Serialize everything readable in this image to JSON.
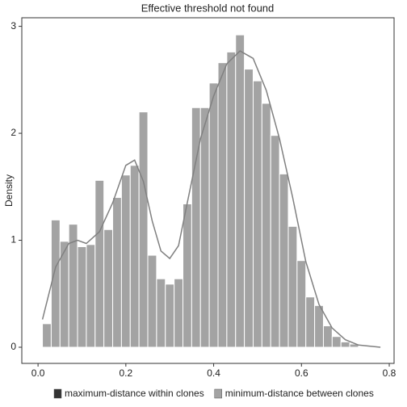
{
  "chart_data": {
    "type": "histogram",
    "title": "Effective threshold not found",
    "ylabel": "Density",
    "bins": [
      0.01,
      0.03,
      0.05,
      0.07,
      0.09,
      0.11,
      0.13,
      0.15,
      0.17,
      0.19,
      0.21,
      0.23,
      0.25,
      0.27,
      0.29,
      0.31,
      0.33,
      0.35,
      0.37,
      0.39,
      0.41,
      0.43,
      0.45,
      0.47,
      0.49,
      0.51,
      0.53,
      0.55,
      0.57,
      0.59,
      0.61,
      0.63,
      0.65,
      0.67,
      0.69,
      0.71,
      0.73
    ],
    "values": [
      0.22,
      1.19,
      0.99,
      1.15,
      0.94,
      0.96,
      1.56,
      1.1,
      1.4,
      1.61,
      1.7,
      2.2,
      0.86,
      0.64,
      0.59,
      0.64,
      1.34,
      2.24,
      2.24,
      2.47,
      2.66,
      2.76,
      2.92,
      2.6,
      2.49,
      2.28,
      1.98,
      1.62,
      1.13,
      0.81,
      0.47,
      0.39,
      0.2,
      0.1,
      0.05,
      0.03
    ],
    "color": "#a3a3a3",
    "density": {
      "x": [
        0.01,
        0.04,
        0.07,
        0.09,
        0.11,
        0.14,
        0.17,
        0.2,
        0.22,
        0.24,
        0.26,
        0.28,
        0.3,
        0.32,
        0.34,
        0.37,
        0.4,
        0.43,
        0.46,
        0.49,
        0.52,
        0.55,
        0.58,
        0.61,
        0.64,
        0.67,
        0.7,
        0.73,
        0.78
      ],
      "values": [
        0.26,
        0.75,
        0.97,
        1.0,
        0.97,
        1.08,
        1.35,
        1.7,
        1.75,
        1.55,
        1.18,
        0.9,
        0.83,
        0.95,
        1.35,
        1.95,
        2.35,
        2.65,
        2.77,
        2.7,
        2.4,
        1.95,
        1.4,
        0.8,
        0.4,
        0.18,
        0.07,
        0.02,
        0.0
      ],
      "color": "#808080"
    },
    "legend": [
      {
        "name": "maximum-distance within clones",
        "color": "#333333"
      },
      {
        "name": "minimum-distance between clones",
        "color": "#a3a3a3"
      }
    ],
    "xlim": [
      -0.037,
      0.811
    ],
    "ylim": [
      -0.151,
      3.08
    ],
    "xticks": [
      {
        "value": 0,
        "label": "0.0"
      },
      0.2,
      0.4,
      0.6,
      0.8
    ],
    "yticks": [
      0,
      1,
      2,
      3
    ]
  }
}
